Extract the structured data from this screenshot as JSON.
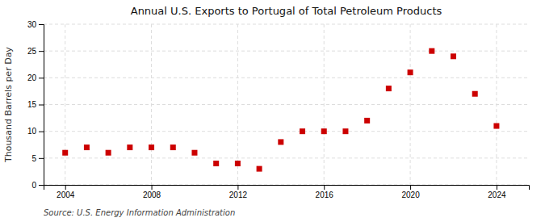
{
  "chart_data": {
    "type": "scatter",
    "title": "Annual U.S. Exports to Portugal of Total Petroleum Products",
    "ylabel": "Thousand Barrels per Day",
    "source": "Source: U.S. Energy Information Administration",
    "x": [
      2004,
      2005,
      2006,
      2007,
      2008,
      2009,
      2010,
      2011,
      2012,
      2013,
      2014,
      2015,
      2016,
      2017,
      2018,
      2019,
      2020,
      2021,
      2022,
      2023,
      2024
    ],
    "values": [
      6.0,
      7.0,
      6.0,
      7.0,
      7.0,
      7.0,
      6.0,
      4.0,
      4.0,
      3.0,
      8.0,
      10.0,
      10.0,
      10.0,
      12.0,
      18.0,
      21.0,
      25.0,
      24.0,
      17.0,
      11.0
    ],
    "color": "#cc0000",
    "marker": "square",
    "xlim": [
      2003.0,
      2025.5
    ],
    "ylim": [
      0,
      30
    ],
    "xticks": [
      2004,
      2008,
      2012,
      2016,
      2020,
      2024
    ],
    "yticks": [
      0,
      5,
      10,
      15,
      20,
      25,
      30
    ],
    "grid": true
  }
}
